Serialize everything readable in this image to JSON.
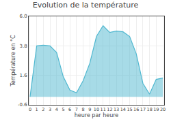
{
  "chart_data": {
    "type": "area",
    "title": "Evolution de la température",
    "xlabel": "heure par heure",
    "ylabel": "Température en °C",
    "x": [
      0,
      1,
      2,
      3,
      4,
      5,
      6,
      7,
      8,
      9,
      10,
      11,
      12,
      13,
      14,
      15,
      16,
      17,
      18,
      19,
      20
    ],
    "values": [
      0.0,
      3.8,
      3.85,
      3.8,
      3.3,
      1.5,
      0.5,
      0.3,
      1.2,
      2.5,
      4.5,
      5.3,
      4.8,
      4.9,
      4.85,
      4.5,
      3.2,
      1.0,
      0.2,
      1.3,
      1.4
    ],
    "color": "#50b8d0",
    "xlim": [
      -0.2,
      20.2
    ],
    "xticks": [
      0,
      1,
      2,
      3,
      4,
      5,
      6,
      7,
      8,
      9,
      10,
      11,
      12,
      13,
      14,
      15,
      16,
      17,
      18,
      19,
      20
    ],
    "ylim": [
      -0.6,
      6.0
    ],
    "yticks": [
      -0.6,
      1.6,
      3.8,
      {
        "value": 6.0,
        "label": "6.0"
      }
    ],
    "grid": true
  }
}
